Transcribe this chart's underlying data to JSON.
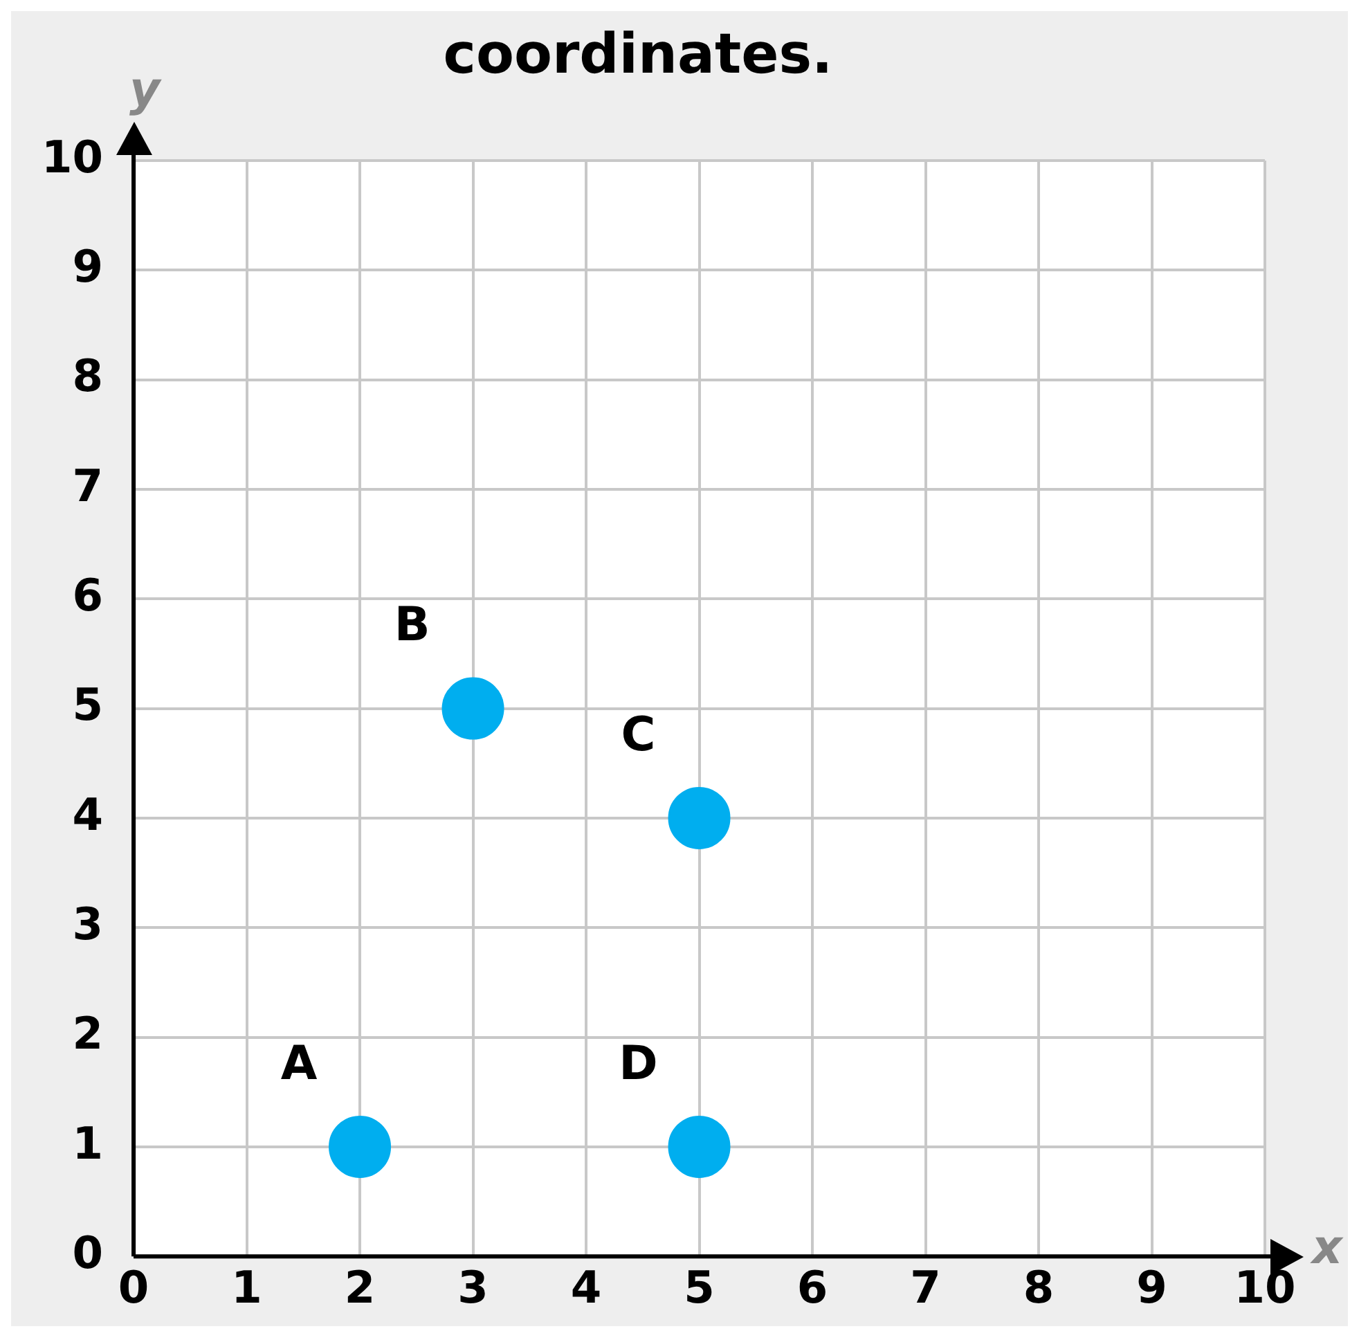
{
  "chart_data": {
    "type": "scatter",
    "title": "coordinates.",
    "xlabel": "x",
    "ylabel": "y",
    "x": [
      2,
      3,
      5,
      5
    ],
    "values": [
      1,
      5,
      4,
      1
    ],
    "color": "#00aeef",
    "marker": "circle",
    "xlim": [
      0,
      10
    ],
    "ylim": [
      0,
      10
    ],
    "xticks": [
      0,
      1,
      2,
      3,
      4,
      5,
      6,
      7,
      8,
      9,
      10
    ],
    "yticks": [
      0,
      1,
      2,
      3,
      4,
      5,
      6,
      7,
      8,
      9,
      10
    ],
    "grid": true,
    "annotations": [
      {
        "text": "A",
        "x": 2,
        "y": 1
      },
      {
        "text": "B",
        "x": 3,
        "y": 5
      },
      {
        "text": "C",
        "x": 5,
        "y": 4
      },
      {
        "text": "D",
        "x": 5,
        "y": 1
      }
    ]
  }
}
